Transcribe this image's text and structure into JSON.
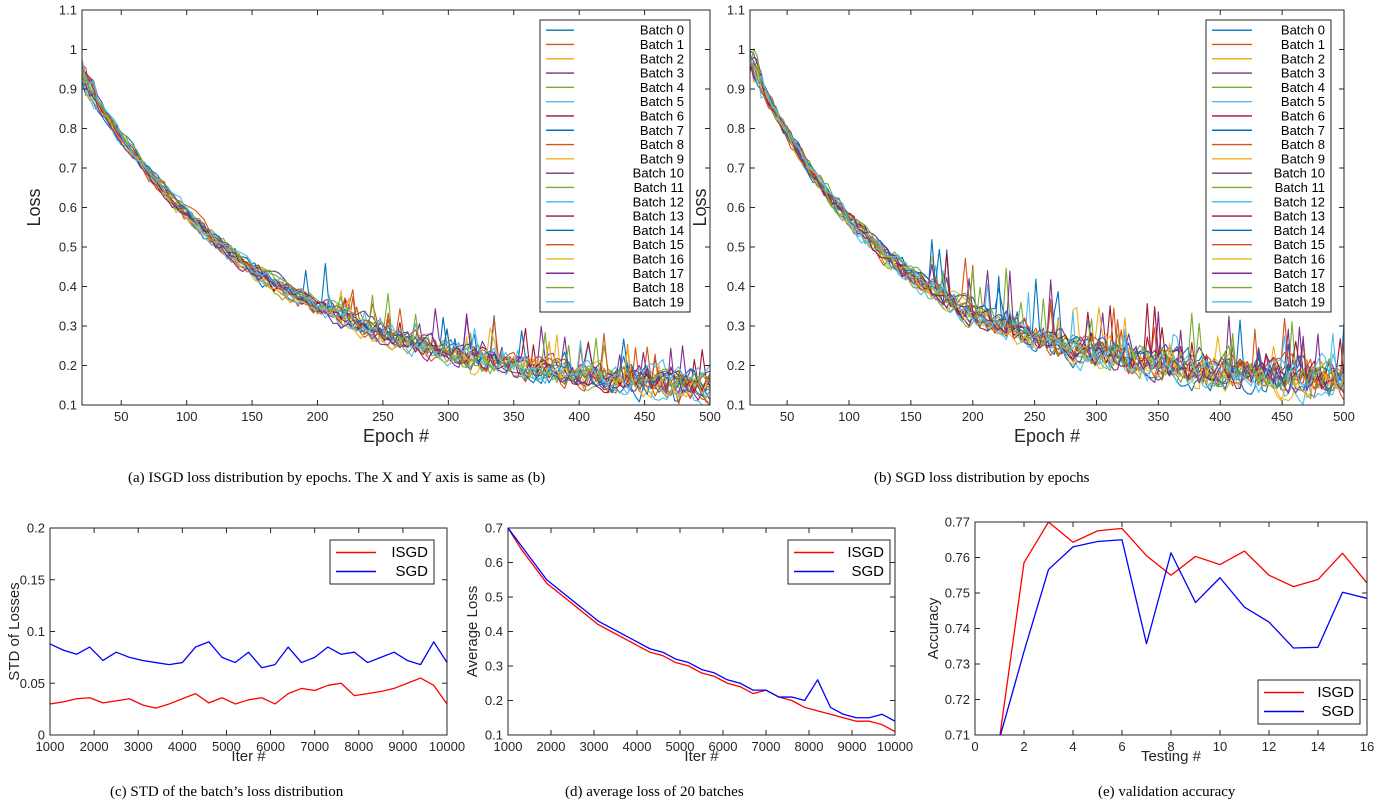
{
  "chart_data": [
    {
      "id": "a",
      "type": "line",
      "caption": "(a) ISGD loss distribution by epochs. The X and Y axis is same as (b)",
      "xlabel": "Epoch #",
      "ylabel": "Loss",
      "xlim": [
        20,
        500
      ],
      "ylim": [
        0.1,
        1.1
      ],
      "xticks": [
        50,
        100,
        150,
        200,
        250,
        300,
        350,
        400,
        450,
        500
      ],
      "yticks": [
        0.1,
        0.2,
        0.3,
        0.4,
        0.5,
        0.6,
        0.7,
        0.8,
        0.9,
        1,
        1.1
      ],
      "legend_position": "top-right",
      "series_generation": {
        "start": 0.93,
        "end": 0.12,
        "decay": 1.6,
        "noise": 0.04,
        "spikes": 0.1,
        "seed": 11
      },
      "series": [
        {
          "name": "Batch 0",
          "color": "#0072bd"
        },
        {
          "name": "Batch 1",
          "color": "#d95319"
        },
        {
          "name": "Batch 2",
          "color": "#edb120"
        },
        {
          "name": "Batch 3",
          "color": "#7e2f8e"
        },
        {
          "name": "Batch 4",
          "color": "#77ac30"
        },
        {
          "name": "Batch 5",
          "color": "#4dbeee"
        },
        {
          "name": "Batch 6",
          "color": "#a2142f"
        },
        {
          "name": "Batch 7",
          "color": "#0072bd"
        },
        {
          "name": "Batch 8",
          "color": "#d95319"
        },
        {
          "name": "Batch 9",
          "color": "#edb120"
        },
        {
          "name": "Batch 10",
          "color": "#7e2f8e"
        },
        {
          "name": "Batch 11",
          "color": "#77ac30"
        },
        {
          "name": "Batch 12",
          "color": "#4dbeee"
        },
        {
          "name": "Batch 13",
          "color": "#a2142f"
        },
        {
          "name": "Batch 14",
          "color": "#0072bd"
        },
        {
          "name": "Batch 15",
          "color": "#d95319"
        },
        {
          "name": "Batch 16",
          "color": "#edb120"
        },
        {
          "name": "Batch 17",
          "color": "#7e2f8e"
        },
        {
          "name": "Batch 18",
          "color": "#77ac30"
        },
        {
          "name": "Batch 19",
          "color": "#4dbeee"
        }
      ]
    },
    {
      "id": "b",
      "type": "line",
      "caption": "(b) SGD loss distribution by epochs",
      "xlabel": "Epoch #",
      "ylabel": "Loss",
      "xlim": [
        20,
        500
      ],
      "ylim": [
        0.1,
        1.1
      ],
      "xticks": [
        50,
        100,
        150,
        200,
        250,
        300,
        350,
        400,
        450,
        500
      ],
      "yticks": [
        0.1,
        0.2,
        0.3,
        0.4,
        0.5,
        0.6,
        0.7,
        0.8,
        0.9,
        1,
        1.1
      ],
      "legend_position": "top-right",
      "series_generation": {
        "start": 0.97,
        "end": 0.15,
        "decay": 1.9,
        "noise": 0.05,
        "spikes": 0.14,
        "seed": 29
      },
      "series": [
        {
          "name": "Batch 0",
          "color": "#0072bd"
        },
        {
          "name": "Batch 1",
          "color": "#d95319"
        },
        {
          "name": "Batch 2",
          "color": "#edb120"
        },
        {
          "name": "Batch 3",
          "color": "#7e2f8e"
        },
        {
          "name": "Batch 4",
          "color": "#77ac30"
        },
        {
          "name": "Batch 5",
          "color": "#4dbeee"
        },
        {
          "name": "Batch 6",
          "color": "#a2142f"
        },
        {
          "name": "Batch 7",
          "color": "#0072bd"
        },
        {
          "name": "Batch 8",
          "color": "#d95319"
        },
        {
          "name": "Batch 9",
          "color": "#edb120"
        },
        {
          "name": "Batch 10",
          "color": "#7e2f8e"
        },
        {
          "name": "Batch 11",
          "color": "#77ac30"
        },
        {
          "name": "Batch 12",
          "color": "#4dbeee"
        },
        {
          "name": "Batch 13",
          "color": "#a2142f"
        },
        {
          "name": "Batch 14",
          "color": "#0072bd"
        },
        {
          "name": "Batch 15",
          "color": "#d95319"
        },
        {
          "name": "Batch 16",
          "color": "#edb120"
        },
        {
          "name": "Batch 17",
          "color": "#7e2f8e"
        },
        {
          "name": "Batch 18",
          "color": "#77ac30"
        },
        {
          "name": "Batch 19",
          "color": "#4dbeee"
        }
      ]
    },
    {
      "id": "c",
      "type": "line",
      "caption": "(c) STD of the batch’s loss distribution",
      "xlabel": "Iter #",
      "ylabel": "STD of Losses",
      "xlim": [
        1000,
        10000
      ],
      "ylim": [
        0,
        0.2
      ],
      "xticks": [
        1000,
        2000,
        3000,
        4000,
        5000,
        6000,
        7000,
        8000,
        9000,
        10000
      ],
      "yticks": [
        0,
        0.05,
        0.1,
        0.15,
        0.2
      ],
      "legend_position": "top-right",
      "series": [
        {
          "name": "ISGD",
          "color": "#ff0000",
          "x": [
            1000,
            1300,
            1600,
            1900,
            2200,
            2500,
            2800,
            3100,
            3400,
            3700,
            4000,
            4300,
            4600,
            4900,
            5200,
            5500,
            5800,
            6100,
            6400,
            6700,
            7000,
            7300,
            7600,
            7900,
            8200,
            8500,
            8800,
            9100,
            9400,
            9700,
            10000
          ],
          "y": [
            0.03,
            0.032,
            0.035,
            0.036,
            0.031,
            0.033,
            0.035,
            0.029,
            0.026,
            0.03,
            0.035,
            0.04,
            0.031,
            0.036,
            0.03,
            0.034,
            0.036,
            0.03,
            0.04,
            0.045,
            0.043,
            0.048,
            0.05,
            0.038,
            0.04,
            0.042,
            0.045,
            0.05,
            0.055,
            0.048,
            0.03
          ]
        },
        {
          "name": "SGD",
          "color": "#0000ff",
          "x": [
            1000,
            1300,
            1600,
            1900,
            2200,
            2500,
            2800,
            3100,
            3400,
            3700,
            4000,
            4300,
            4600,
            4900,
            5200,
            5500,
            5800,
            6100,
            6400,
            6700,
            7000,
            7300,
            7600,
            7900,
            8200,
            8500,
            8800,
            9100,
            9400,
            9700,
            10000
          ],
          "y": [
            0.088,
            0.082,
            0.078,
            0.085,
            0.072,
            0.08,
            0.075,
            0.072,
            0.07,
            0.068,
            0.07,
            0.085,
            0.09,
            0.075,
            0.07,
            0.08,
            0.065,
            0.068,
            0.085,
            0.07,
            0.075,
            0.085,
            0.078,
            0.08,
            0.07,
            0.075,
            0.08,
            0.072,
            0.068,
            0.09,
            0.07
          ]
        }
      ]
    },
    {
      "id": "d",
      "type": "line",
      "caption": "(d) average loss of 20 batches",
      "xlabel": "Iter #",
      "ylabel": "Average Loss",
      "xlim": [
        1000,
        10000
      ],
      "ylim": [
        0.1,
        0.7
      ],
      "xticks": [
        1000,
        2000,
        3000,
        4000,
        5000,
        6000,
        7000,
        8000,
        9000,
        10000
      ],
      "yticks": [
        0.1,
        0.2,
        0.3,
        0.4,
        0.5,
        0.6,
        0.7
      ],
      "legend_position": "top-right",
      "series": [
        {
          "name": "ISGD",
          "color": "#ff0000",
          "x": [
            1000,
            1300,
            1600,
            1900,
            2200,
            2500,
            2800,
            3100,
            3400,
            3700,
            4000,
            4300,
            4600,
            4900,
            5200,
            5500,
            5800,
            6100,
            6400,
            6700,
            7000,
            7300,
            7600,
            7900,
            8200,
            8500,
            8800,
            9100,
            9400,
            9700,
            10000
          ],
          "y": [
            0.7,
            0.64,
            0.59,
            0.54,
            0.51,
            0.48,
            0.45,
            0.42,
            0.4,
            0.38,
            0.36,
            0.34,
            0.33,
            0.31,
            0.3,
            0.28,
            0.27,
            0.25,
            0.24,
            0.22,
            0.23,
            0.21,
            0.2,
            0.18,
            0.17,
            0.16,
            0.15,
            0.14,
            0.14,
            0.13,
            0.11
          ]
        },
        {
          "name": "SGD",
          "color": "#0000ff",
          "x": [
            1000,
            1300,
            1600,
            1900,
            2200,
            2500,
            2800,
            3100,
            3400,
            3700,
            4000,
            4300,
            4600,
            4900,
            5200,
            5500,
            5800,
            6100,
            6400,
            6700,
            7000,
            7300,
            7600,
            7900,
            8200,
            8500,
            8800,
            9100,
            9400,
            9700,
            10000
          ],
          "y": [
            0.7,
            0.65,
            0.6,
            0.55,
            0.52,
            0.49,
            0.46,
            0.43,
            0.41,
            0.39,
            0.37,
            0.35,
            0.34,
            0.32,
            0.31,
            0.29,
            0.28,
            0.26,
            0.25,
            0.23,
            0.23,
            0.21,
            0.21,
            0.2,
            0.26,
            0.18,
            0.16,
            0.15,
            0.15,
            0.16,
            0.14
          ]
        }
      ]
    },
    {
      "id": "e",
      "type": "line",
      "caption": "(e) validation accuracy",
      "xlabel": "Testing #",
      "ylabel": "Accuracy",
      "xlim": [
        0,
        16
      ],
      "ylim": [
        0.71,
        0.77
      ],
      "xticks": [
        0,
        2,
        4,
        6,
        8,
        10,
        12,
        14,
        16
      ],
      "yticks": [
        0.71,
        0.72,
        0.73,
        0.74,
        0.75,
        0.76,
        0.77
      ],
      "legend_position": "bottom-right",
      "series": [
        {
          "name": "ISGD",
          "color": "#ff0000",
          "x": [
            1,
            2,
            3,
            4,
            5,
            6,
            7,
            8,
            9,
            10,
            11,
            12,
            13,
            14,
            15,
            16
          ],
          "y": [
            0.709,
            0.7585,
            0.77,
            0.7643,
            0.7675,
            0.7682,
            0.7605,
            0.755,
            0.7603,
            0.758,
            0.7618,
            0.755,
            0.7518,
            0.7538,
            0.7612,
            0.7528
          ]
        },
        {
          "name": "SGD",
          "color": "#0000ff",
          "x": [
            1,
            2,
            3,
            4,
            5,
            6,
            7,
            8,
            9,
            10,
            11,
            12,
            13,
            14,
            15,
            16
          ],
          "y": [
            0.709,
            0.7335,
            0.7566,
            0.763,
            0.7645,
            0.765,
            0.7357,
            0.7613,
            0.7473,
            0.7543,
            0.746,
            0.7418,
            0.7345,
            0.7347,
            0.7502,
            0.7485
          ]
        }
      ]
    }
  ]
}
